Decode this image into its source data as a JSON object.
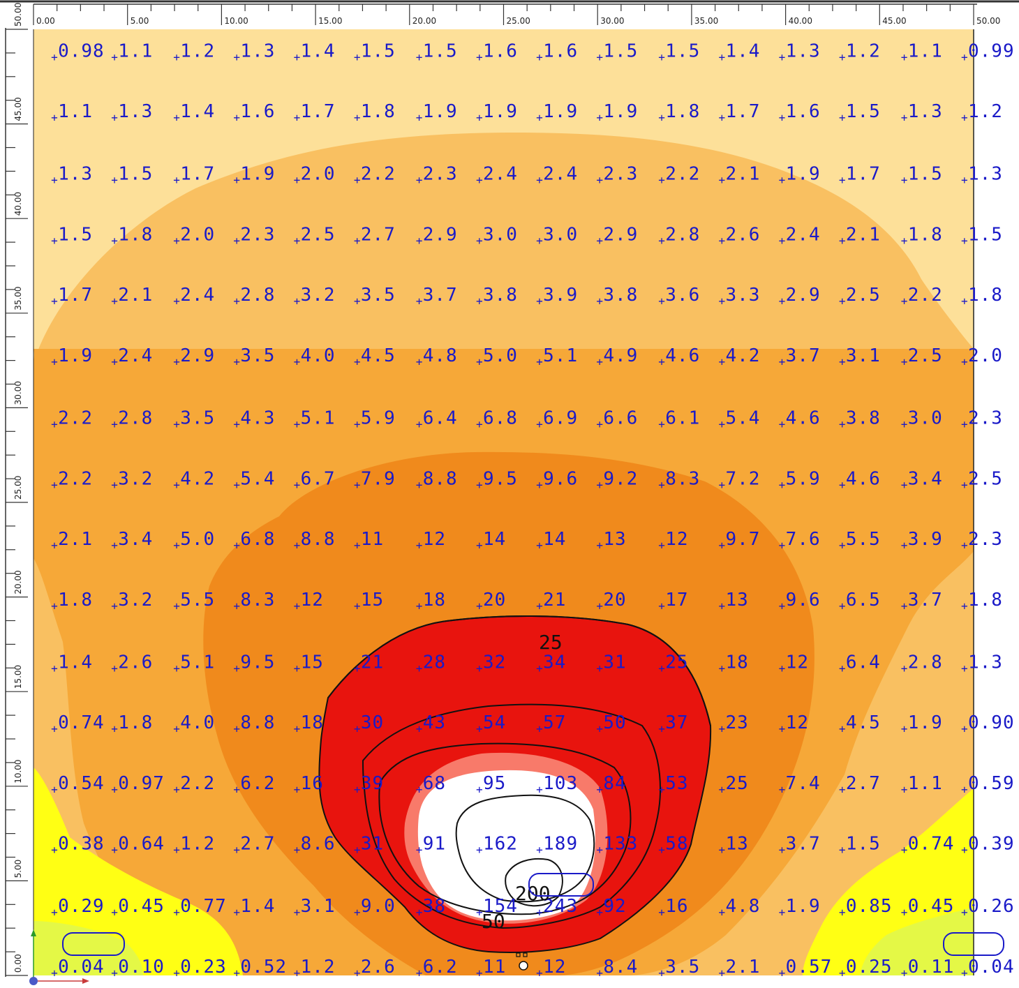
{
  "chart_data": {
    "type": "heatmap",
    "title": "",
    "xlabel": "",
    "ylabel": "",
    "xlim": [
      0,
      50
    ],
    "ylim": [
      0,
      50
    ],
    "x_ticks": [
      "0.00",
      "5.00",
      "10.00",
      "15.00",
      "20.00",
      "25.00",
      "30.00",
      "35.00",
      "40.00",
      "45.00",
      "50.00"
    ],
    "y_ticks": [
      "0.00",
      "5.00",
      "10.00",
      "15.00",
      "20.00",
      "25.00",
      "30.00",
      "35.00",
      "40.00",
      "45.00",
      "50.00"
    ],
    "grid_x": [
      1.6,
      4.8,
      8.1,
      11.3,
      14.5,
      17.7,
      21.0,
      24.2,
      27.4,
      30.6,
      33.9,
      37.1,
      40.3,
      43.5,
      46.8,
      50.0
    ],
    "grid_y": [
      48.4,
      45.2,
      41.9,
      38.7,
      35.5,
      32.3,
      29.0,
      25.8,
      22.6,
      19.4,
      16.1,
      12.9,
      9.7,
      6.5,
      3.2,
      0.0
    ],
    "values": [
      [
        "0.98",
        "1.1",
        "1.2",
        "1.3",
        "1.4",
        "1.5",
        "1.5",
        "1.6",
        "1.6",
        "1.5",
        "1.5",
        "1.4",
        "1.3",
        "1.2",
        "1.1",
        "0.99"
      ],
      [
        "1.1",
        "1.3",
        "1.4",
        "1.6",
        "1.7",
        "1.8",
        "1.9",
        "1.9",
        "1.9",
        "1.9",
        "1.8",
        "1.7",
        "1.6",
        "1.5",
        "1.3",
        "1.2"
      ],
      [
        "1.3",
        "1.5",
        "1.7",
        "1.9",
        "2.0",
        "2.2",
        "2.3",
        "2.4",
        "2.4",
        "2.3",
        "2.2",
        "2.1",
        "1.9",
        "1.7",
        "1.5",
        "1.3"
      ],
      [
        "1.5",
        "1.8",
        "2.0",
        "2.3",
        "2.5",
        "2.7",
        "2.9",
        "3.0",
        "3.0",
        "2.9",
        "2.8",
        "2.6",
        "2.4",
        "2.1",
        "1.8",
        "1.5"
      ],
      [
        "1.7",
        "2.1",
        "2.4",
        "2.8",
        "3.2",
        "3.5",
        "3.7",
        "3.8",
        "3.9",
        "3.8",
        "3.6",
        "3.3",
        "2.9",
        "2.5",
        "2.2",
        "1.8"
      ],
      [
        "1.9",
        "2.4",
        "2.9",
        "3.5",
        "4.0",
        "4.5",
        "4.8",
        "5.0",
        "5.1",
        "4.9",
        "4.6",
        "4.2",
        "3.7",
        "3.1",
        "2.5",
        "2.0"
      ],
      [
        "2.2",
        "2.8",
        "3.5",
        "4.3",
        "5.1",
        "5.9",
        "6.4",
        "6.8",
        "6.9",
        "6.6",
        "6.1",
        "5.4",
        "4.6",
        "3.8",
        "3.0",
        "2.3"
      ],
      [
        "2.2",
        "3.2",
        "4.2",
        "5.4",
        "6.7",
        "7.9",
        "8.8",
        "9.5",
        "9.6",
        "9.2",
        "8.3",
        "7.2",
        "5.9",
        "4.6",
        "3.4",
        "2.5"
      ],
      [
        "2.1",
        "3.4",
        "5.0",
        "6.8",
        "8.8",
        "11",
        "12",
        "14",
        "14",
        "13",
        "12",
        "9.7",
        "7.6",
        "5.5",
        "3.9",
        "2.3"
      ],
      [
        "1.8",
        "3.2",
        "5.5",
        "8.3",
        "12",
        "15",
        "18",
        "20",
        "21",
        "20",
        "17",
        "13",
        "9.6",
        "6.5",
        "3.7",
        "1.8"
      ],
      [
        "1.4",
        "2.6",
        "5.1",
        "9.5",
        "15",
        "21",
        "28",
        "32",
        "34",
        "31",
        "25",
        "18",
        "12",
        "6.4",
        "2.8",
        "1.3"
      ],
      [
        "0.74",
        "1.8",
        "4.0",
        "8.8",
        "18",
        "30",
        "43",
        "54",
        "57",
        "50",
        "37",
        "23",
        "12",
        "4.5",
        "1.9",
        "0.90"
      ],
      [
        "0.54",
        "0.97",
        "2.2",
        "6.2",
        "16",
        "39",
        "68",
        "95",
        "103",
        "84",
        "53",
        "25",
        "7.4",
        "2.7",
        "1.1",
        "0.59"
      ],
      [
        "0.38",
        "0.64",
        "1.2",
        "2.7",
        "8.6",
        "31",
        "91",
        "162",
        "189",
        "133",
        "58",
        "13",
        "3.7",
        "1.5",
        "0.74",
        "0.39"
      ],
      [
        "0.29",
        "0.45",
        "0.77",
        "1.4",
        "3.1",
        "9.0",
        "38",
        "154",
        "243",
        "92",
        "16",
        "4.8",
        "1.9",
        "0.85",
        "0.45",
        "0.26"
      ],
      [
        "0.04",
        "0.10",
        "0.23",
        "0.52",
        "1.2",
        "2.6",
        "6.2",
        "11",
        "12",
        "8.4",
        "3.5",
        "2.1",
        "0.57",
        "0.25",
        "0.11",
        "0.04"
      ]
    ],
    "contour_labels": [
      "25",
      "200",
      "50"
    ],
    "colors": {
      "lightest": "#fde099",
      "light": "#f9c061",
      "mid": "#f6a838",
      "dark": "#f08a1c",
      "red": "#e8140e",
      "pink": "#f87a6a",
      "white": "#ffffff",
      "yellow": "#ffff14",
      "yellowgreen": "#e4f846",
      "value_text": "#1a1ac8"
    }
  }
}
